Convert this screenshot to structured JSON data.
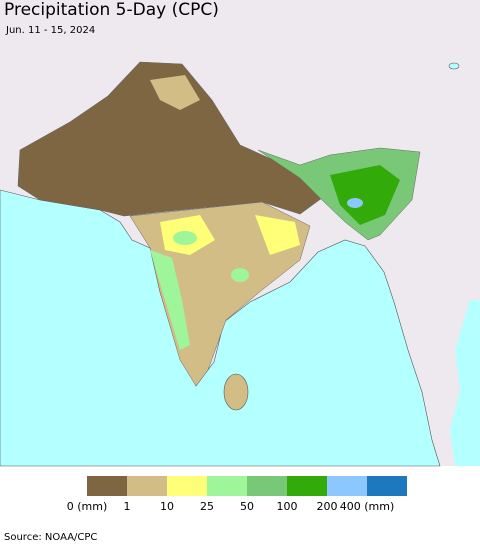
{
  "title": "Precipitation 5-Day (CPC)",
  "subtitle": "Jun. 11 - 15, 2024",
  "legend": {
    "colors": [
      "#7f6643",
      "#d2bd86",
      "#ffff78",
      "#9ff59a",
      "#78c878",
      "#32aa0a",
      "#8cc8ff",
      "#1e78be"
    ],
    "labels": [
      "0 (mm)",
      "1",
      "10",
      "25",
      "50",
      "100",
      "200",
      "400 (mm)"
    ]
  },
  "source": "Source: NOAA/CPC"
}
